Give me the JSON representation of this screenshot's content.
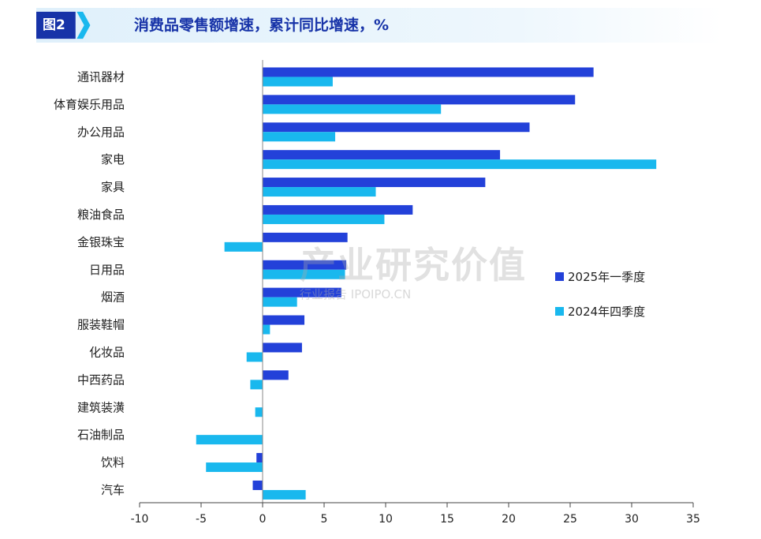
{
  "header": {
    "figure_label": "图2",
    "title": "消费品零售额增速，累计同比增速，%"
  },
  "watermark": {
    "main": "产业研究价值",
    "sub": "行业报告 IPOIPO.CN"
  },
  "colors": {
    "q1_2025": "#2341d9",
    "q4_2024": "#19b8ee",
    "badge": "#1733a8",
    "title": "#1733a8"
  },
  "chart_data": {
    "type": "bar",
    "orientation": "horizontal",
    "categories": [
      "通讯器材",
      "体育娱乐用品",
      "办公用品",
      "家电",
      "家具",
      "粮油食品",
      "金银珠宝",
      "日用品",
      "烟酒",
      "服装鞋帽",
      "化妆品",
      "中西药品",
      "建筑装潢",
      "石油制品",
      "饮料",
      "汽车"
    ],
    "series": [
      {
        "name": "2025年一季度",
        "values": [
          26.9,
          25.4,
          21.7,
          19.3,
          18.1,
          12.2,
          6.9,
          6.8,
          6.4,
          3.4,
          3.2,
          2.1,
          0.0,
          0.0,
          -0.5,
          -0.8
        ]
      },
      {
        "name": "2024年四季度",
        "values": [
          5.7,
          14.5,
          5.9,
          32.0,
          9.2,
          9.9,
          -3.1,
          6.7,
          2.8,
          0.6,
          -1.3,
          -1.0,
          -0.6,
          -5.4,
          -4.6,
          3.5
        ]
      }
    ],
    "xlim": [
      -10,
      35
    ],
    "xticks": [
      -10,
      -5,
      0,
      5,
      10,
      15,
      20,
      25,
      30,
      35
    ],
    "xtick_labels": [
      "-10",
      "-5",
      "0",
      "5",
      "10",
      "15",
      "20",
      "25",
      "30",
      "35"
    ],
    "legend_position": "right",
    "grid": false
  }
}
